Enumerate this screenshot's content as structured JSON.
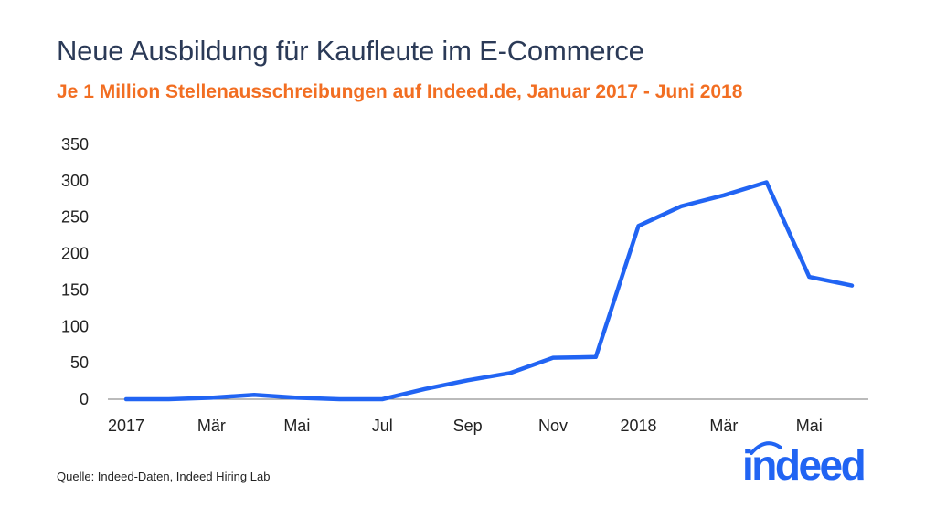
{
  "chart_data": {
    "type": "line",
    "title": "Neue Ausbildung für Kaufleute im E-Commerce",
    "subtitle": "Je 1 Million Stellenausschreibungen auf Indeed.de, Januar 2017 - Juni 2018",
    "x": [
      "2017-01",
      "2017-02",
      "2017-03",
      "2017-04",
      "2017-05",
      "2017-06",
      "2017-07",
      "2017-08",
      "2017-09",
      "2017-10",
      "2017-11",
      "2017-12",
      "2018-01",
      "2018-02",
      "2018-03",
      "2018-04",
      "2018-05",
      "2018-06"
    ],
    "x_tick_labels": [
      "2017",
      "Mär",
      "Mai",
      "Jul",
      "Sep",
      "Nov",
      "2018",
      "Mär",
      "Mai"
    ],
    "y_tick_labels": [
      "0",
      "50",
      "100",
      "150",
      "200",
      "250",
      "300",
      "350"
    ],
    "series": [
      {
        "values": [
          0,
          0,
          2,
          6,
          2,
          0,
          0,
          14,
          26,
          36,
          57,
          58,
          238,
          265,
          280,
          298,
          168,
          156
        ]
      }
    ],
    "ylim": [
      0,
      350
    ],
    "xlabel": "",
    "ylabel": "",
    "grid": false,
    "line_color": "#2164f3"
  },
  "source": "Quelle: Indeed-Daten, Indeed Hiring Lab",
  "logo": {
    "text": "indeed",
    "color": "#2164f3"
  }
}
